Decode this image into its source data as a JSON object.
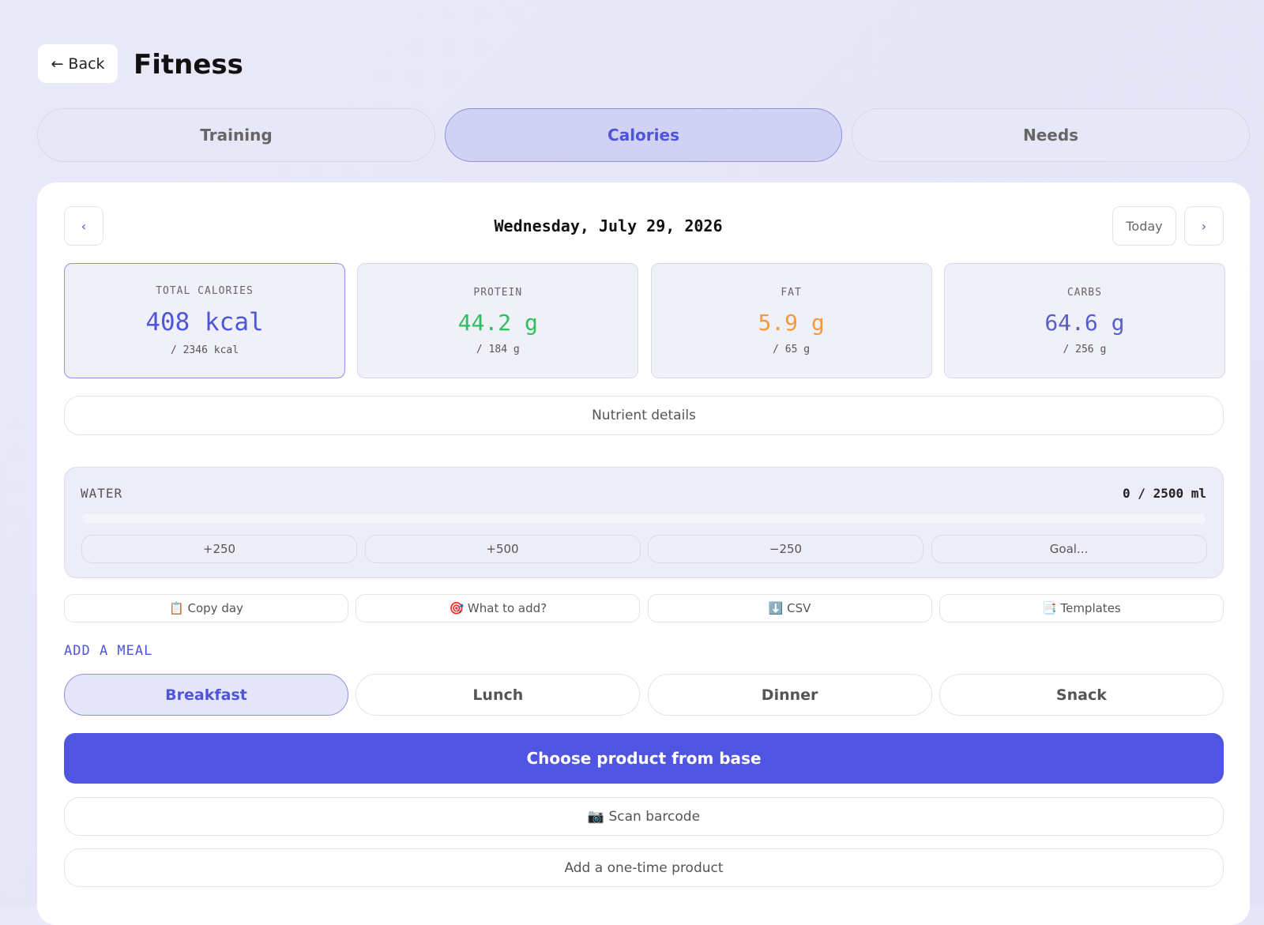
{
  "header": {
    "back": "← Back",
    "title": "Fitness"
  },
  "tabs": {
    "items": [
      "Training",
      "Calories",
      "Needs"
    ],
    "active": 1
  },
  "date_bar": {
    "prev": "‹",
    "date": "Wednesday, July 29, 2026",
    "today": "Today",
    "next": "›"
  },
  "stats": [
    {
      "label": "TOTAL CALORIES",
      "value": "408 kcal",
      "goal": "/ 2346 kcal",
      "color": "#4f55d9"
    },
    {
      "label": "PROTEIN",
      "value": "44.2 g",
      "goal": "/ 184 g",
      "color": "#2fbf5f"
    },
    {
      "label": "FAT",
      "value": "5.9 g",
      "goal": "/ 65 g",
      "color": "#f59a3b"
    },
    {
      "label": "CARBS",
      "value": "64.6 g",
      "goal": "/ 256 g",
      "color": "#5a5fc8"
    }
  ],
  "nutrient_details": "Nutrient details",
  "water": {
    "label": "WATER",
    "amount": "0 / 2500 ml",
    "buttons": [
      "+250",
      "+500",
      "−250",
      "Goal..."
    ]
  },
  "actions": [
    "📋 Copy day",
    "🎯 What to add?",
    "⬇️ CSV",
    "📑 Templates"
  ],
  "meal": {
    "title": "ADD A MEAL",
    "items": [
      "Breakfast",
      "Lunch",
      "Dinner",
      "Snack"
    ],
    "active": 0
  },
  "primary": "Choose product from base",
  "scan": "📷 Scan barcode",
  "one_time": "Add a one-time product"
}
